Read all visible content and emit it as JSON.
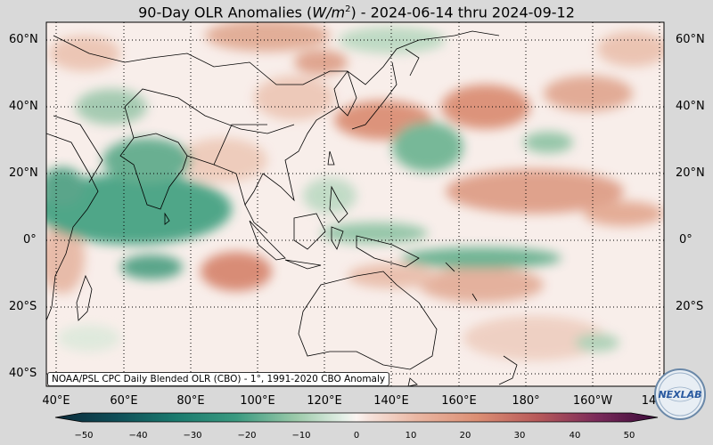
{
  "title": {
    "prefix": "90-Day OLR Anomalies (",
    "unit_main": "W/m",
    "unit_exp": "2",
    "suffix": ") - 2024-06-14 thru 2024-09-12"
  },
  "lat_labels": [
    "60°N",
    "40°N",
    "20°N",
    "0°",
    "20°S",
    "40°S"
  ],
  "lon_labels": [
    "40°E",
    "60°E",
    "80°E",
    "100°E",
    "120°E",
    "140°E",
    "160°E",
    "180°",
    "160°W",
    "14"
  ],
  "credit": "NOAA/PSL CPC Daily Blended OLR (CBO) - 1°, 1991-2020 CBO Anomaly",
  "colorbar": {
    "ticks": [
      "−50",
      "−40",
      "−30",
      "−20",
      "−10",
      "0",
      "10",
      "20",
      "30",
      "40",
      "50"
    ],
    "colors_negative": [
      "#0b2a3a",
      "#0f4d57",
      "#1a7a6e",
      "#3a9a80",
      "#7dbb9a",
      "#bfdcc7",
      "#e6f0e8"
    ],
    "colors_positive": [
      "#f6e3dc",
      "#eab7a3",
      "#dc8f74",
      "#c86a5a",
      "#a84a5a",
      "#7a2a5a",
      "#3a0a3a"
    ]
  },
  "logo": {
    "text": "NEXLAB",
    "icon": "globe-icon"
  },
  "colors": {
    "land_outline": "#000000",
    "background": "#f8eeea"
  }
}
